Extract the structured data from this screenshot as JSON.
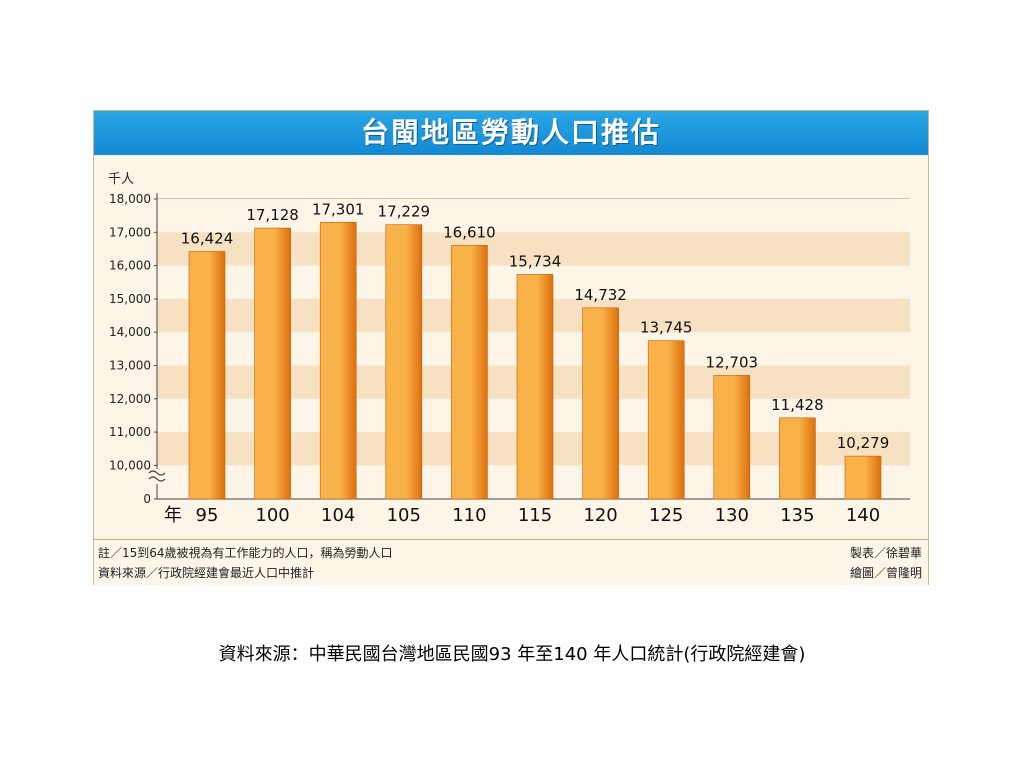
{
  "chart_data": {
    "type": "bar",
    "title": "台閩地區勞動人口推估",
    "ylabel": "千人",
    "xlabel": "年",
    "categories": [
      "95",
      "100",
      "104",
      "105",
      "110",
      "115",
      "120",
      "125",
      "130",
      "135",
      "140"
    ],
    "values": [
      16424,
      17128,
      17301,
      17229,
      16610,
      15734,
      14732,
      13745,
      12703,
      11428,
      10279
    ],
    "value_labels": [
      "16,424",
      "17,128",
      "17,301",
      "17,229",
      "16,610",
      "15,734",
      "14,732",
      "13,745",
      "12,703",
      "11,428",
      "10,279"
    ],
    "y_ticks": [
      0,
      10000,
      11000,
      12000,
      13000,
      14000,
      15000,
      16000,
      17000,
      18000
    ],
    "y_tick_labels": [
      "0",
      "10,000",
      "11,000",
      "12,000",
      "13,000",
      "14,000",
      "15,000",
      "16,000",
      "17,000",
      "18,000"
    ],
    "ylim": [
      9600,
      18000
    ],
    "axis_break": true,
    "grid": "horizontal stripes",
    "colors": {
      "bar_light": "#f9b24a",
      "bar_dark": "#de6f0c",
      "stripe": "#f6e1c2",
      "title_bg": "#1a93dc"
    }
  },
  "notes": {
    "left_1": "註／15到64歲被視為有工作能力的人口，稱為勞動人口",
    "left_2": "資料來源／行政院經建會最近人口中推計",
    "right_1": "製表／徐碧華",
    "right_2": "繪圖／曾隆明"
  },
  "caption": "資料來源：中華民國台灣地區民國93 年至140 年人口統計(行政院經建會)"
}
